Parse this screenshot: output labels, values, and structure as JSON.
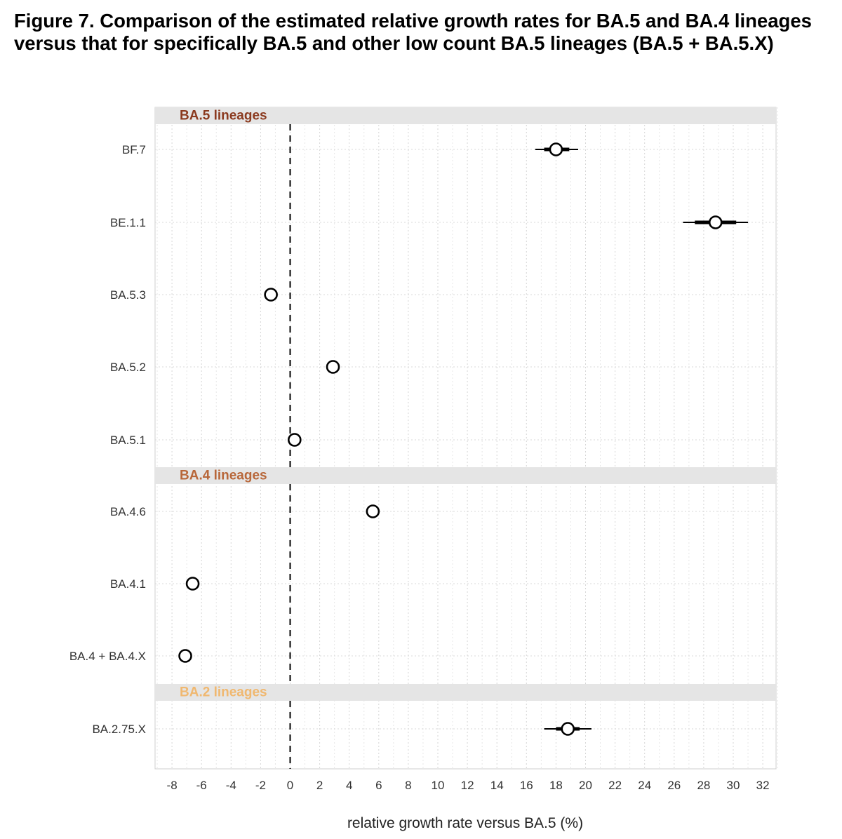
{
  "figure_caption": "Figure 7. Comparison of the estimated relative growth rates for BA.5 and BA.4 lineages versus that for specifically BA.5 and other low count BA.5 lineages (BA.5 + BA.5.X)",
  "chart_data": {
    "type": "scatter",
    "title": "",
    "xlabel": "relative growth rate versus BA.5 (%)",
    "ylabel": "",
    "xlim": [
      -9,
      33
    ],
    "xticks": [
      -8,
      -6,
      -4,
      -2,
      0,
      2,
      4,
      6,
      8,
      10,
      12,
      14,
      16,
      18,
      20,
      22,
      24,
      26,
      28,
      30,
      32
    ],
    "reference_line": {
      "x": 0,
      "style": "dashed"
    },
    "grid": true,
    "panels": [
      {
        "label": "BA.5 lineages",
        "label_color": "#8b3a1f",
        "points": [
          {
            "name": "BF.7",
            "estimate": 18.0,
            "inner": [
              17.2,
              18.9
            ],
            "outer": [
              16.6,
              19.5
            ]
          },
          {
            "name": "BE.1.1",
            "estimate": 28.8,
            "inner": [
              27.4,
              30.2
            ],
            "outer": [
              26.6,
              31.0
            ]
          },
          {
            "name": "BA.5.3",
            "estimate": -1.3,
            "inner": [
              -1.3,
              -1.3
            ],
            "outer": [
              -1.3,
              -1.3
            ]
          },
          {
            "name": "BA.5.2",
            "estimate": 2.9,
            "inner": [
              2.9,
              2.9
            ],
            "outer": [
              2.9,
              2.9
            ]
          },
          {
            "name": "BA.5.1",
            "estimate": 0.3,
            "inner": [
              0.3,
              0.3
            ],
            "outer": [
              0.3,
              0.3
            ]
          }
        ]
      },
      {
        "label": "BA.4 lineages",
        "label_color": "#b8673a",
        "points": [
          {
            "name": "BA.4.6",
            "estimate": 5.6,
            "inner": [
              5.4,
              5.8
            ],
            "outer": [
              5.2,
              6.0
            ]
          },
          {
            "name": "BA.4.1",
            "estimate": -6.6,
            "inner": [
              -6.8,
              -6.4
            ],
            "outer": [
              -7.0,
              -6.2
            ]
          },
          {
            "name": "BA.4 + BA.4.X",
            "estimate": -7.1,
            "inner": [
              -7.1,
              -7.1
            ],
            "outer": [
              -7.1,
              -7.1
            ]
          }
        ]
      },
      {
        "label": "BA.2 lineages",
        "label_color": "#f0b870",
        "points": [
          {
            "name": "BA.2.75.X",
            "estimate": 18.8,
            "inner": [
              18.0,
              19.6
            ],
            "outer": [
              17.2,
              20.4
            ]
          }
        ]
      }
    ]
  }
}
